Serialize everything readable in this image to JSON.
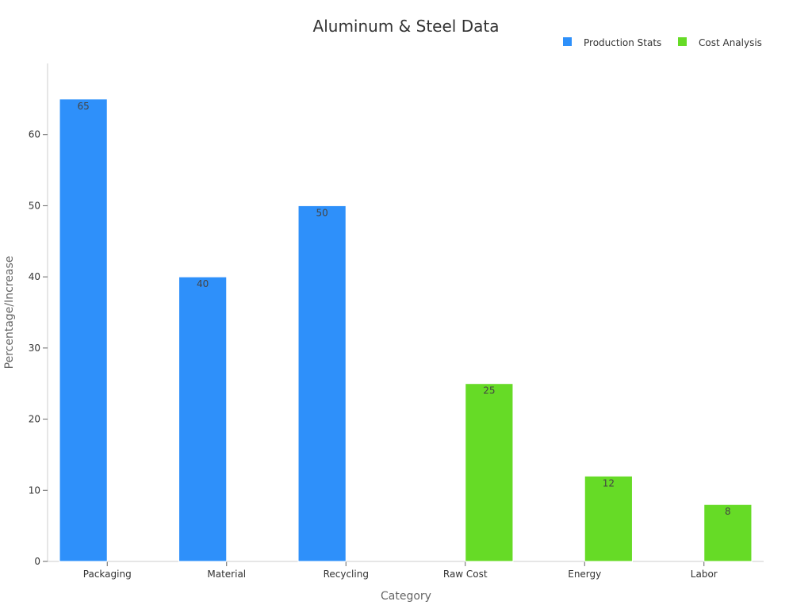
{
  "chart_data": {
    "type": "bar",
    "title": "Aluminum & Steel Data",
    "xlabel": "Category",
    "ylabel": "Percentage/Increase",
    "categories": [
      "Packaging",
      "Material",
      "Recycling",
      "Raw Cost",
      "Energy",
      "Labor"
    ],
    "series": [
      {
        "name": "Production Stats",
        "color": "#2e90fa",
        "values": [
          65,
          40,
          50,
          null,
          null,
          null
        ]
      },
      {
        "name": "Cost Analysis",
        "color": "#66db26",
        "values": [
          null,
          null,
          null,
          25,
          12,
          8
        ]
      }
    ],
    "ylim": [
      0,
      70
    ],
    "yticks": [
      0,
      10,
      20,
      30,
      40,
      50,
      60
    ],
    "grid": false,
    "legend_position": "top-right",
    "data_labels": true
  }
}
